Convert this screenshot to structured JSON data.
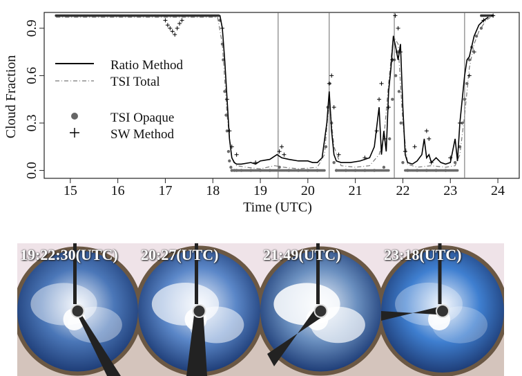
{
  "chart_data": {
    "type": "line",
    "xlabel": "Time (UTC)",
    "ylabel": "Cloud Fraction",
    "xlim": [
      14.45,
      24.45
    ],
    "ylim": [
      -0.05,
      1.0
    ],
    "xticks": [
      15,
      16,
      17,
      18,
      19,
      20,
      21,
      22,
      23,
      24
    ],
    "yticks": [
      0.0,
      0.3,
      0.6,
      0.9
    ],
    "ytick_labels": [
      "0.0",
      "0.3",
      "0.6",
      "0.9"
    ],
    "legend_position": "top-left",
    "vertical_markers": [
      19.375,
      20.45,
      21.82,
      23.3
    ],
    "series": [
      {
        "name": "Ratio Method",
        "style": "solid",
        "x": [
          14.7,
          18.15,
          18.2,
          18.25,
          18.3,
          18.35,
          18.4,
          18.45,
          18.5,
          18.6,
          18.8,
          18.9,
          19.0,
          19.2,
          19.35,
          19.45,
          19.6,
          19.8,
          20.0,
          20.1,
          20.2,
          20.3,
          20.4,
          20.45,
          20.5,
          20.55,
          20.6,
          20.7,
          20.9,
          21.1,
          21.3,
          21.4,
          21.5,
          21.55,
          21.6,
          21.65,
          21.7,
          21.75,
          21.8,
          21.85,
          21.9,
          21.95,
          22.0,
          22.05,
          22.1,
          22.2,
          22.3,
          22.4,
          22.45,
          22.5,
          22.55,
          22.6,
          22.7,
          22.8,
          22.9,
          23.0,
          23.1,
          23.15,
          23.2,
          23.25,
          23.3,
          23.35,
          23.4,
          23.5,
          23.6,
          23.7,
          23.8
        ],
        "y": [
          0.98,
          0.98,
          0.9,
          0.7,
          0.45,
          0.2,
          0.08,
          0.05,
          0.04,
          0.04,
          0.05,
          0.04,
          0.06,
          0.07,
          0.1,
          0.08,
          0.07,
          0.06,
          0.06,
          0.05,
          0.05,
          0.08,
          0.3,
          0.5,
          0.25,
          0.1,
          0.06,
          0.05,
          0.05,
          0.06,
          0.08,
          0.15,
          0.4,
          0.1,
          0.25,
          0.12,
          0.5,
          0.65,
          0.85,
          0.78,
          0.7,
          0.8,
          0.4,
          0.1,
          0.05,
          0.04,
          0.06,
          0.1,
          0.2,
          0.08,
          0.1,
          0.05,
          0.08,
          0.05,
          0.04,
          0.05,
          0.2,
          0.06,
          0.3,
          0.45,
          0.6,
          0.7,
          0.72,
          0.85,
          0.92,
          0.95,
          0.97
        ]
      },
      {
        "name": "TSI Total",
        "style": "dash-dot",
        "x": [
          14.7,
          18.1,
          18.2,
          18.3,
          18.4,
          18.5,
          18.7,
          19.0,
          19.3,
          19.5,
          19.8,
          20.2,
          20.35,
          20.45,
          20.55,
          20.7,
          21.0,
          21.3,
          21.5,
          21.6,
          21.7,
          21.8,
          21.9,
          22.0,
          22.1,
          22.3,
          22.6,
          22.9,
          23.1,
          23.2,
          23.3,
          23.4,
          23.5,
          23.6,
          23.75,
          23.85
        ],
        "y": [
          0.97,
          0.97,
          0.8,
          0.35,
          0.08,
          0.03,
          0.02,
          0.01,
          0.03,
          0.02,
          0.01,
          0.02,
          0.1,
          0.45,
          0.15,
          0.03,
          0.02,
          0.03,
          0.1,
          0.2,
          0.55,
          0.85,
          0.8,
          0.3,
          0.04,
          0.02,
          0.03,
          0.02,
          0.03,
          0.1,
          0.35,
          0.65,
          0.8,
          0.88,
          0.95,
          0.97
        ]
      }
    ],
    "scatter_series": [
      {
        "name": "TSI Opaque",
        "marker": "dot",
        "x": [
          18.15,
          18.2,
          18.22,
          18.25,
          18.28,
          18.3,
          18.33,
          18.35,
          18.38,
          18.4,
          18.45,
          18.5,
          18.6,
          18.8,
          19.0,
          19.2,
          19.4,
          19.6,
          19.8,
          20.0,
          20.2,
          20.38,
          20.42,
          20.46,
          20.5,
          20.55,
          20.6,
          20.8,
          21.0,
          21.2,
          21.4,
          21.6,
          21.72,
          21.78,
          21.82,
          21.85,
          21.88,
          21.92,
          21.96,
          22.0,
          22.1,
          22.3,
          22.5,
          22.7,
          22.9,
          23.1,
          23.2,
          23.25,
          23.3,
          23.35,
          23.4,
          23.45,
          23.55,
          23.65
        ],
        "y": [
          0.95,
          0.8,
          0.7,
          0.5,
          0.35,
          0.25,
          0.12,
          0.06,
          0.02,
          0.0,
          0.0,
          0.0,
          0.0,
          0.0,
          0.0,
          0.0,
          0.02,
          0.0,
          0.0,
          0.0,
          0.0,
          0.15,
          0.4,
          0.55,
          0.3,
          0.05,
          0.0,
          0.0,
          0.0,
          0.0,
          0.0,
          0.02,
          0.2,
          0.45,
          0.7,
          0.6,
          0.75,
          0.5,
          0.3,
          0.05,
          0.0,
          0.0,
          0.0,
          0.0,
          0.0,
          0.05,
          0.15,
          0.3,
          0.45,
          0.55,
          0.7,
          0.78,
          0.85,
          0.9
        ]
      },
      {
        "name": "SW Method",
        "marker": "plus",
        "x": [
          17.0,
          17.05,
          17.1,
          17.15,
          17.2,
          17.25,
          17.3,
          17.35,
          18.2,
          18.3,
          18.35,
          18.4,
          18.5,
          18.9,
          19.4,
          19.45,
          19.5,
          20.45,
          20.5,
          20.55,
          20.65,
          21.2,
          21.45,
          21.5,
          21.55,
          21.62,
          21.7,
          21.78,
          21.84,
          21.9,
          21.95,
          22.05,
          22.25,
          22.5,
          22.55,
          22.6,
          23.0,
          23.2,
          23.4,
          23.5,
          23.7,
          23.9
        ],
        "y": [
          0.95,
          0.92,
          0.9,
          0.88,
          0.86,
          0.9,
          0.93,
          0.95,
          0.9,
          0.45,
          0.25,
          0.15,
          0.1,
          0.05,
          0.12,
          0.15,
          0.1,
          0.55,
          0.6,
          0.4,
          0.1,
          0.08,
          0.25,
          0.45,
          0.55,
          0.2,
          0.4,
          0.7,
          0.98,
          0.9,
          0.75,
          0.12,
          0.15,
          0.25,
          0.2,
          0.05,
          0.08,
          0.3,
          0.6,
          0.75,
          0.95,
          0.98
        ]
      }
    ]
  },
  "photos": [
    {
      "label": "19:22:30(UTC)",
      "sky_color": "#4b77b8",
      "cloud_opacity": 0.45
    },
    {
      "label": "20:27(UTC)",
      "sky_color": "#5b87c8",
      "cloud_opacity": 0.65
    },
    {
      "label": "21:49(UTC)",
      "sky_color": "#6a8fbf",
      "cloud_opacity": 0.85
    },
    {
      "label": "23:18(UTC)",
      "sky_color": "#3f7fd0",
      "cloud_opacity": 0.3
    }
  ]
}
